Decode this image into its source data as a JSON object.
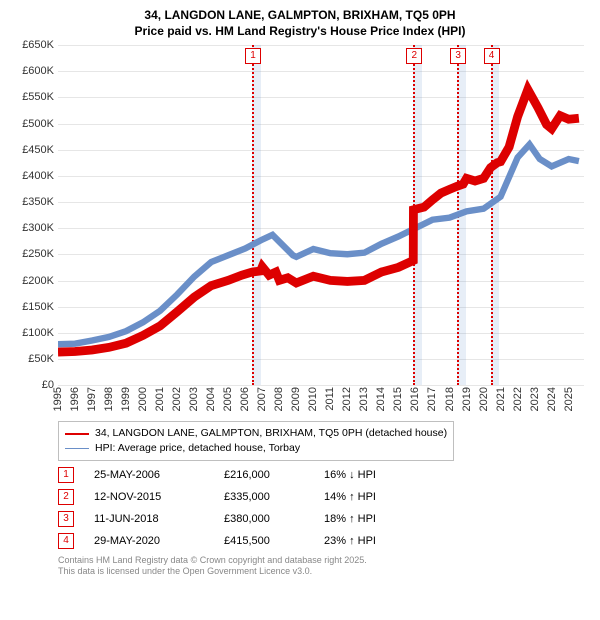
{
  "header": {
    "line1": "34, LANGDON LANE, GALMPTON, BRIXHAM, TQ5 0PH",
    "line2": "Price paid vs. HM Land Registry's House Price Index (HPI)"
  },
  "chart": {
    "type": "line",
    "ylim": [
      0,
      650000
    ],
    "ytick_step": 50000,
    "ytick_labels": [
      "£0",
      "£50K",
      "£100K",
      "£150K",
      "£200K",
      "£250K",
      "£300K",
      "£350K",
      "£400K",
      "£450K",
      "£500K",
      "£550K",
      "£600K",
      "£650K"
    ],
    "xlim": [
      1995,
      2025.9
    ],
    "xticks": [
      1995,
      1996,
      1997,
      1998,
      1999,
      2000,
      2001,
      2002,
      2003,
      2004,
      2005,
      2006,
      2007,
      2008,
      2009,
      2010,
      2011,
      2012,
      2013,
      2014,
      2015,
      2016,
      2017,
      2018,
      2019,
      2020,
      2021,
      2022,
      2023,
      2024,
      2025
    ],
    "background_color": "#ffffff",
    "grid_color": "#e6e6e6",
    "series": [
      {
        "name": "property",
        "color": "#dd0000",
        "width": 2.2,
        "label": "34, LANGDON LANE, GALMPTON, BRIXHAM, TQ5 0PH (detached house)",
        "data": [
          [
            1995,
            63000
          ],
          [
            1996,
            64000
          ],
          [
            1997,
            67000
          ],
          [
            1998,
            72000
          ],
          [
            1999,
            80000
          ],
          [
            2000,
            95000
          ],
          [
            2001,
            113000
          ],
          [
            2002,
            140000
          ],
          [
            2003,
            168000
          ],
          [
            2004,
            190000
          ],
          [
            2005,
            200000
          ],
          [
            2005.8,
            210000
          ],
          [
            2006.4,
            216000
          ],
          [
            2006.9,
            218000
          ],
          [
            2007,
            226000
          ],
          [
            2007.4,
            210000
          ],
          [
            2007.8,
            216000
          ],
          [
            2008,
            200000
          ],
          [
            2008.5,
            205000
          ],
          [
            2009,
            195000
          ],
          [
            2010,
            208000
          ],
          [
            2011,
            200000
          ],
          [
            2012,
            198000
          ],
          [
            2013,
            200000
          ],
          [
            2014,
            216000
          ],
          [
            2015,
            225000
          ],
          [
            2015.87,
            238000
          ],
          [
            2015.88,
            335000
          ],
          [
            2016.5,
            340000
          ],
          [
            2017,
            354000
          ],
          [
            2017.5,
            367000
          ],
          [
            2018,
            374000
          ],
          [
            2018.45,
            380000
          ],
          [
            2018.8,
            384000
          ],
          [
            2019,
            395000
          ],
          [
            2019.5,
            390000
          ],
          [
            2020,
            395000
          ],
          [
            2020.41,
            415500
          ],
          [
            2020.8,
            425000
          ],
          [
            2021,
            427000
          ],
          [
            2021.5,
            455000
          ],
          [
            2022,
            513000
          ],
          [
            2022.6,
            565000
          ],
          [
            2023.2,
            530000
          ],
          [
            2023.7,
            498000
          ],
          [
            2024,
            490000
          ],
          [
            2024.5,
            515000
          ],
          [
            2025,
            508000
          ],
          [
            2025.6,
            510000
          ]
        ]
      },
      {
        "name": "hpi",
        "color": "#6a8fc8",
        "width": 1.6,
        "label": "HPI: Average price, detached house, Torbay",
        "data": [
          [
            1995,
            78000
          ],
          [
            1996,
            79000
          ],
          [
            1997,
            85000
          ],
          [
            1998,
            92000
          ],
          [
            1999,
            103000
          ],
          [
            2000,
            120000
          ],
          [
            2001,
            142000
          ],
          [
            2002,
            173000
          ],
          [
            2003,
            207000
          ],
          [
            2004,
            235000
          ],
          [
            2005,
            248000
          ],
          [
            2006,
            261000
          ],
          [
            2007,
            278000
          ],
          [
            2007.6,
            287000
          ],
          [
            2008,
            274000
          ],
          [
            2008.8,
            248000
          ],
          [
            2009,
            245000
          ],
          [
            2010,
            260000
          ],
          [
            2011,
            252000
          ],
          [
            2012,
            250000
          ],
          [
            2013,
            253000
          ],
          [
            2014,
            270000
          ],
          [
            2015,
            284000
          ],
          [
            2016,
            300000
          ],
          [
            2017,
            316000
          ],
          [
            2018,
            320000
          ],
          [
            2019,
            332000
          ],
          [
            2020,
            337000
          ],
          [
            2021,
            360000
          ],
          [
            2022,
            435000
          ],
          [
            2022.7,
            460000
          ],
          [
            2023.3,
            432000
          ],
          [
            2024,
            418000
          ],
          [
            2025,
            432000
          ],
          [
            2025.6,
            428000
          ]
        ]
      }
    ],
    "markers": [
      {
        "idx": "1",
        "x": 2006.4,
        "band_width": 0.5
      },
      {
        "idx": "2",
        "x": 2015.87,
        "band_width": 0.5
      },
      {
        "idx": "3",
        "x": 2018.45,
        "band_width": 0.5
      },
      {
        "idx": "4",
        "x": 2020.41,
        "band_width": 0.5
      }
    ],
    "marker_line_color": "#dd0000",
    "marker_band_color": "rgba(120,160,210,0.18)"
  },
  "legend": {
    "rows": [
      {
        "color": "#dd0000",
        "width": 2.2,
        "label": "34, LANGDON LANE, GALMPTON, BRIXHAM, TQ5 0PH (detached house)"
      },
      {
        "color": "#6a8fc8",
        "width": 1.6,
        "label": "HPI: Average price, detached house, Torbay"
      }
    ]
  },
  "transactions": [
    {
      "idx": "1",
      "date": "25-MAY-2006",
      "price": "£216,000",
      "pct": "16% ↓ HPI"
    },
    {
      "idx": "2",
      "date": "12-NOV-2015",
      "price": "£335,000",
      "pct": "14% ↑ HPI"
    },
    {
      "idx": "3",
      "date": "11-JUN-2018",
      "price": "£380,000",
      "pct": "18% ↑ HPI"
    },
    {
      "idx": "4",
      "date": "29-MAY-2020",
      "price": "£415,500",
      "pct": "23% ↑ HPI"
    }
  ],
  "footnote": {
    "line1": "Contains HM Land Registry data © Crown copyright and database right 2025.",
    "line2": "This data is licensed under the Open Government Licence v3.0."
  }
}
